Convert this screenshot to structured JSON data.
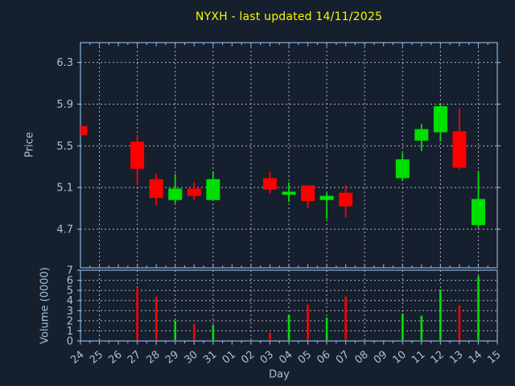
{
  "title": {
    "text": "NYXH - last updated 14/11/2025",
    "color": "#f8f800"
  },
  "axes": {
    "price_label": "Price",
    "volume_label": "Volume (0000)",
    "day_label": "Day",
    "axis_color": "#8db2d8",
    "tick_label_color": "#a7c1dc",
    "grid_color": "#c9ced6",
    "background": "#151f2e"
  },
  "chart_data": [
    {
      "type": "candlestick",
      "panel": "price",
      "ylabel": "Price",
      "xlabel": "Day",
      "up_color": "#00e000",
      "down_color": "#ff0000",
      "grid": true,
      "legend": "none",
      "x_labels": [
        "24",
        "25",
        "26",
        "27",
        "28",
        "29",
        "30",
        "31",
        "01",
        "02",
        "03",
        "04",
        "05",
        "06",
        "07",
        "08",
        "09",
        "10",
        "11",
        "12",
        "13",
        "14",
        "15"
      ],
      "grid_x_days": [
        "25",
        "27",
        "29",
        "31",
        "02",
        "04",
        "06",
        "08",
        "10",
        "12",
        "14"
      ],
      "yticks": [
        4.7,
        5.1,
        5.5,
        5.9,
        6.3
      ],
      "ylim": [
        4.33,
        6.49
      ],
      "candles": [
        {
          "day": "24",
          "open": 5.69,
          "high": 5.69,
          "low": 5.6,
          "close": 5.6
        },
        {
          "day": "27",
          "open": 5.54,
          "high": 5.6,
          "low": 5.12,
          "close": 5.28
        },
        {
          "day": "28",
          "open": 5.18,
          "high": 5.23,
          "low": 4.93,
          "close": 5.0
        },
        {
          "day": "29",
          "open": 4.98,
          "high": 5.23,
          "low": 4.95,
          "close": 5.09
        },
        {
          "day": "30",
          "open": 5.09,
          "high": 5.15,
          "low": 4.98,
          "close": 5.02
        },
        {
          "day": "31",
          "open": 4.98,
          "high": 5.25,
          "low": 4.98,
          "close": 5.18
        },
        {
          "day": "03",
          "open": 5.19,
          "high": 5.25,
          "low": 5.04,
          "close": 5.08
        },
        {
          "day": "04",
          "open": 5.03,
          "high": 5.15,
          "low": 4.96,
          "close": 5.06
        },
        {
          "day": "05",
          "open": 5.12,
          "high": 5.12,
          "low": 4.9,
          "close": 4.97
        },
        {
          "day": "06",
          "open": 4.98,
          "high": 5.05,
          "low": 4.8,
          "close": 5.02
        },
        {
          "day": "07",
          "open": 5.05,
          "high": 5.12,
          "low": 4.81,
          "close": 4.92
        },
        {
          "day": "10",
          "open": 5.19,
          "high": 5.43,
          "low": 5.16,
          "close": 5.37
        },
        {
          "day": "11",
          "open": 5.55,
          "high": 5.71,
          "low": 5.45,
          "close": 5.66
        },
        {
          "day": "12",
          "open": 5.63,
          "high": 5.9,
          "low": 5.54,
          "close": 5.88
        },
        {
          "day": "13",
          "open": 5.64,
          "high": 5.86,
          "low": 5.27,
          "close": 5.29
        },
        {
          "day": "14",
          "open": 4.74,
          "high": 5.26,
          "low": 4.72,
          "close": 4.99
        }
      ]
    },
    {
      "type": "bar",
      "panel": "volume",
      "ylabel": "Volume (0000)",
      "grid": true,
      "yticks": [
        0,
        1,
        2,
        3,
        4,
        5,
        6,
        7
      ],
      "ylim": [
        0,
        7
      ],
      "bars": [
        {
          "day": "27",
          "value": 5.2,
          "direction": "down"
        },
        {
          "day": "28",
          "value": 4.4,
          "direction": "down"
        },
        {
          "day": "29",
          "value": 2.0,
          "direction": "up"
        },
        {
          "day": "30",
          "value": 1.7,
          "direction": "down"
        },
        {
          "day": "31",
          "value": 1.6,
          "direction": "up"
        },
        {
          "day": "03",
          "value": 0.8,
          "direction": "down"
        },
        {
          "day": "04",
          "value": 2.6,
          "direction": "up"
        },
        {
          "day": "05",
          "value": 3.6,
          "direction": "down"
        },
        {
          "day": "06",
          "value": 2.3,
          "direction": "up"
        },
        {
          "day": "07",
          "value": 4.4,
          "direction": "down"
        },
        {
          "day": "10",
          "value": 2.7,
          "direction": "up"
        },
        {
          "day": "11",
          "value": 2.5,
          "direction": "up"
        },
        {
          "day": "12",
          "value": 5.1,
          "direction": "up"
        },
        {
          "day": "13",
          "value": 3.5,
          "direction": "down"
        },
        {
          "day": "14",
          "value": 6.4,
          "direction": "up"
        }
      ]
    }
  ]
}
